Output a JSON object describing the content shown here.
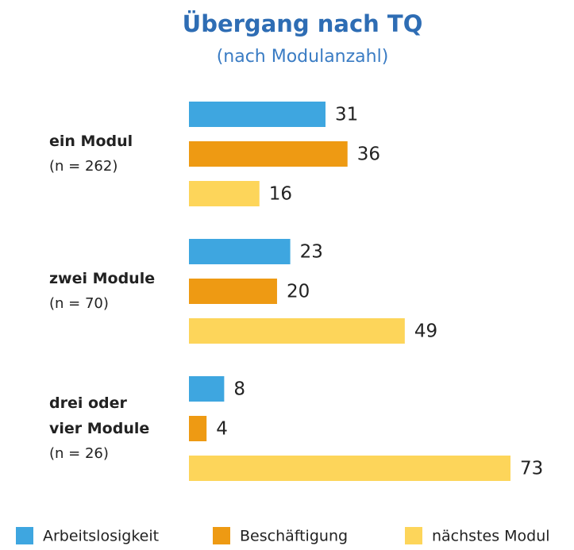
{
  "chart_data": {
    "type": "bar",
    "orientation": "horizontal",
    "title": "Übergang nach TQ",
    "subtitle": "(nach Modulanzahl)",
    "categories": [
      "ein Modul",
      "zwei Module",
      "drei oder vier Module"
    ],
    "category_notes": [
      "(n = 262)",
      "(n = 70)",
      "(n = 26)"
    ],
    "series": [
      {
        "name": "Arbeitslosigkeit",
        "color": "#3ea6e0",
        "values": [
          31,
          23,
          8
        ]
      },
      {
        "name": "Beschäftigung",
        "color": "#ee9a13",
        "values": [
          36,
          20,
          4
        ]
      },
      {
        "name": "nächstes Modul",
        "color": "#fdd55a",
        "values": [
          16,
          49,
          73
        ]
      }
    ],
    "legend": "bottom"
  }
}
